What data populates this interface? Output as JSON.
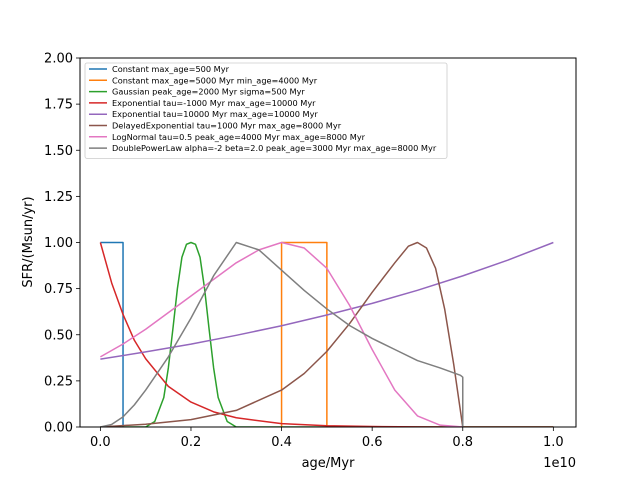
{
  "chart_data": {
    "type": "line",
    "title": "",
    "xlabel": "age/Myr",
    "ylabel": "SFR/(Msun/yr)",
    "x_offset_label": "1e10",
    "xlim": [
      -450000000,
      10500000000
    ],
    "ylim": [
      0,
      2
    ],
    "x_tick_values": [
      0,
      2000000000,
      4000000000,
      6000000000,
      8000000000,
      10000000000
    ],
    "x_tick_labels": [
      "0.0",
      "0.2",
      "0.4",
      "0.6",
      "0.8",
      "1.0"
    ],
    "y_tick_values": [
      0,
      0.25,
      0.5,
      0.75,
      1.0,
      1.25,
      1.5,
      1.75,
      2.0
    ],
    "y_tick_labels": [
      "0.00",
      "0.25",
      "0.50",
      "0.75",
      "1.00",
      "1.25",
      "1.50",
      "1.75",
      "2.00"
    ],
    "grid": false,
    "legend_position": "top-left",
    "series": [
      {
        "name": "Constant max_age=500 Myr",
        "color": "#1f77b4",
        "x": [
          0,
          0,
          500000000,
          500000000
        ],
        "y": [
          1,
          1,
          1,
          0
        ]
      },
      {
        "name": "Constant max_age=5000 Myr min_age=4000 Myr",
        "color": "#ff7f0e",
        "x": [
          4000000000,
          4000000000,
          5000000000,
          5000000000
        ],
        "y": [
          0,
          1,
          1,
          0
        ]
      },
      {
        "name": "Gaussian peak_age=2000 Myr sigma=500 Myr",
        "color": "#2ca02c",
        "x": [
          0,
          500000000,
          800000000,
          1000000000,
          1200000000,
          1400000000,
          1500000000,
          1600000000,
          1700000000,
          1800000000,
          1900000000,
          2000000000,
          2100000000,
          2200000000,
          2300000000,
          2400000000,
          2500000000,
          2600000000,
          2800000000,
          3000000000,
          3500000000,
          4000000000,
          10000000000
        ],
        "y": [
          0.0,
          0.0,
          0.0,
          0.0,
          0.03,
          0.16,
          0.32,
          0.53,
          0.75,
          0.92,
          0.99,
          1.0,
          0.99,
          0.92,
          0.75,
          0.53,
          0.32,
          0.16,
          0.03,
          0.0,
          0.0,
          0.0,
          0.0
        ]
      },
      {
        "name": "Exponential tau=-1000 Myr max_age=10000 Myr",
        "color": "#d62728",
        "x": [
          0,
          250000000,
          500000000,
          750000000,
          1000000000,
          1500000000,
          2000000000,
          2500000000,
          3000000000,
          4000000000,
          5000000000,
          6000000000,
          7000000000,
          8000000000,
          9000000000,
          10000000000
        ],
        "y": [
          1.0,
          0.78,
          0.61,
          0.47,
          0.37,
          0.22,
          0.135,
          0.082,
          0.05,
          0.018,
          0.007,
          0.0025,
          0.0009,
          0.0003,
          0.0001,
          0.0
        ]
      },
      {
        "name": "Exponential tau=10000 Myr max_age=10000 Myr",
        "color": "#9467bd",
        "x": [
          0,
          1000000000,
          2000000000,
          3000000000,
          4000000000,
          5000000000,
          6000000000,
          7000000000,
          8000000000,
          9000000000,
          10000000000
        ],
        "y": [
          0.368,
          0.407,
          0.449,
          0.497,
          0.549,
          0.607,
          0.67,
          0.741,
          0.819,
          0.905,
          1.0
        ]
      },
      {
        "name": "DelayedExponential tau=1000 Myr max_age=8000 Myr",
        "color": "#8c564b",
        "x": [
          0,
          1000000000,
          2000000000,
          3000000000,
          4000000000,
          4500000000,
          5000000000,
          5500000000,
          6000000000,
          6500000000,
          6800000000,
          7000000000,
          7200000000,
          7400000000,
          7600000000,
          7800000000,
          8000000000
        ],
        "y": [
          0.0,
          0.015,
          0.04,
          0.09,
          0.2,
          0.29,
          0.41,
          0.56,
          0.73,
          0.89,
          0.98,
          1.0,
          0.97,
          0.86,
          0.64,
          0.34,
          0.0
        ]
      },
      {
        "name": "LogNormal tau=0.5 peak_age=4000 Myr max_age=8000 Myr",
        "color": "#e377c2",
        "x": [
          0,
          500000000,
          1000000000,
          1500000000,
          2000000000,
          2500000000,
          3000000000,
          3500000000,
          4000000000,
          4500000000,
          5000000000,
          5500000000,
          6000000000,
          6500000000,
          7000000000,
          7500000000,
          8000000000
        ],
        "y": [
          0.38,
          0.45,
          0.53,
          0.62,
          0.71,
          0.8,
          0.89,
          0.96,
          1.0,
          0.97,
          0.86,
          0.66,
          0.42,
          0.2,
          0.06,
          0.01,
          0.0
        ]
      },
      {
        "name": "DoublePowerLaw alpha=-2 beta=2.0 peak_age=3000 Myr max_age=8000 Myr",
        "color": "#7f7f7f",
        "x": [
          0,
          250000000,
          500000000,
          750000000,
          1000000000,
          1500000000,
          2000000000,
          2500000000,
          3000000000,
          3500000000,
          4000000000,
          4500000000,
          5000000000,
          5500000000,
          6000000000,
          6500000000,
          7000000000,
          7500000000,
          7950000000,
          8000000000,
          8000000000
        ],
        "y": [
          0.0,
          0.014,
          0.055,
          0.12,
          0.2,
          0.38,
          0.59,
          0.82,
          1.0,
          0.96,
          0.85,
          0.74,
          0.64,
          0.55,
          0.48,
          0.42,
          0.36,
          0.32,
          0.28,
          0.27,
          0.0
        ]
      }
    ]
  }
}
